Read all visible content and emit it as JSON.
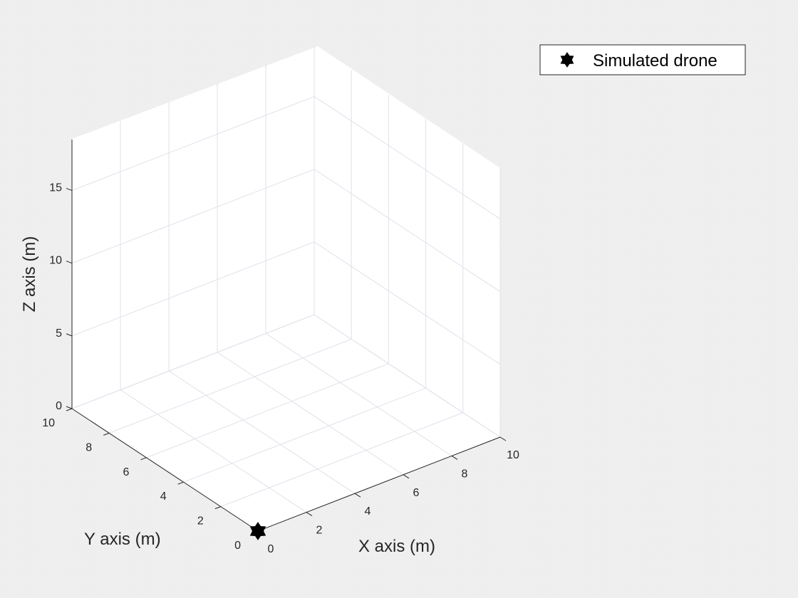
{
  "chart_data": {
    "type": "scatter",
    "view": "3d",
    "xlabel": "X axis (m)",
    "ylabel": "Y axis (m)",
    "zlabel": "Z axis (m)",
    "xlim": [
      0,
      10
    ],
    "ylim": [
      0,
      10
    ],
    "zlim": [
      0,
      18.5
    ],
    "xticks": [
      "0",
      "2",
      "4",
      "6",
      "8",
      "10"
    ],
    "yticks": [
      "0",
      "2",
      "4",
      "6",
      "8",
      "10"
    ],
    "zticks": [
      "0",
      "5",
      "10",
      "15"
    ],
    "grid": true,
    "legend_position": "top-right",
    "series": [
      {
        "name": "Simulated drone",
        "marker": "hexagram",
        "color": "#000000",
        "points": [
          {
            "x": 0,
            "y": 0,
            "z": 0
          }
        ]
      }
    ]
  }
}
